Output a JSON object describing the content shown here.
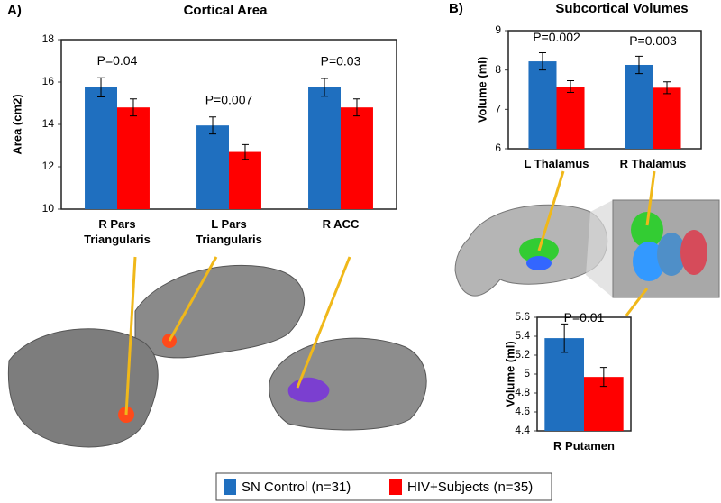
{
  "chart_data": [
    {
      "type": "bar",
      "panel_label": "A)",
      "title": "Cortical Area",
      "y_label": "Area (cm2)",
      "categories": [
        "R Pars Triangularis",
        "L Pars Triangularis",
        "R ACC"
      ],
      "annotations": [
        "P=0.04",
        "P=0.007",
        "P=0.03"
      ],
      "series": [
        {
          "name": "SN Control (n=31)",
          "color": "#1f6fbf",
          "values": [
            15.75,
            13.95,
            15.75
          ],
          "errors": [
            0.45,
            0.4,
            0.42
          ]
        },
        {
          "name": "HIV+Subjects (n=35)",
          "color": "#ff0000",
          "values": [
            14.8,
            12.7,
            14.8
          ],
          "errors": [
            0.4,
            0.35,
            0.4
          ]
        }
      ],
      "ylim": [
        10,
        18
      ],
      "yticks": [
        10,
        12,
        14,
        16,
        18
      ]
    },
    {
      "type": "bar",
      "panel_label": "B)",
      "title": "Subcortical Volumes",
      "y_label": "Volume (ml)",
      "categories": [
        "L Thalamus",
        "R Thalamus"
      ],
      "annotations": [
        "P=0.002",
        "P=0.003"
      ],
      "series": [
        {
          "color": "#1f6fbf",
          "values": [
            8.22,
            8.13
          ],
          "errors": [
            0.22,
            0.22
          ]
        },
        {
          "color": "#ff0000",
          "values": [
            7.58,
            7.55
          ],
          "errors": [
            0.15,
            0.15
          ]
        }
      ],
      "ylim": [
        6,
        9
      ],
      "yticks": [
        6,
        7,
        8,
        9
      ]
    },
    {
      "type": "bar",
      "y_label": "Volume (ml)",
      "categories": [
        "R Putamen"
      ],
      "annotations": [
        "P=0.01"
      ],
      "series": [
        {
          "color": "#1f6fbf",
          "values": [
            5.38
          ],
          "errors": [
            0.15
          ]
        },
        {
          "color": "#ff0000",
          "values": [
            4.97
          ],
          "errors": [
            0.1
          ]
        }
      ],
      "ylim": [
        4.4,
        5.6
      ],
      "yticks": [
        4.4,
        4.6,
        4.8,
        5,
        5.2,
        5.4,
        5.6
      ]
    }
  ]
}
